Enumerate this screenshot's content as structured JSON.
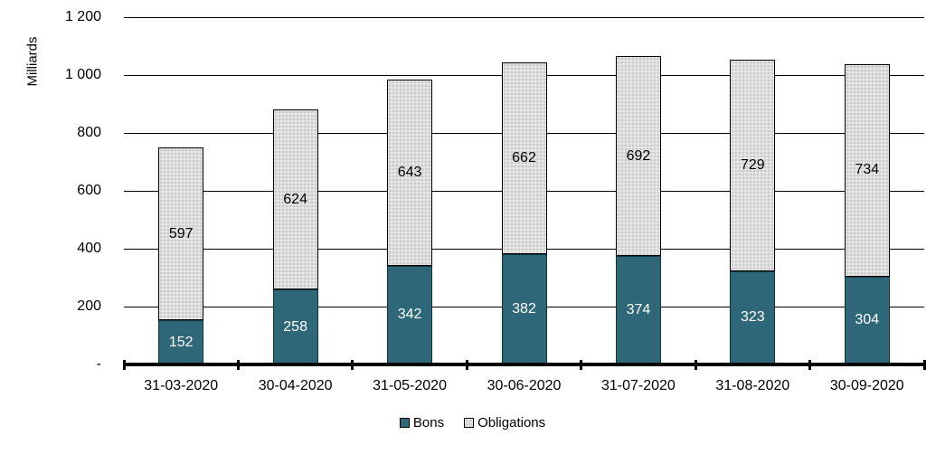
{
  "chart_data": {
    "type": "bar",
    "stacked": true,
    "title": "",
    "ylabel": "Milliards",
    "xlabel": "",
    "categories": [
      "31-03-2020",
      "30-04-2020",
      "31-05-2020",
      "30-06-2020",
      "31-07-2020",
      "31-08-2020",
      "30-09-2020"
    ],
    "series": [
      {
        "name": "Bons",
        "values": [
          152,
          258,
          342,
          382,
          374,
          323,
          304
        ],
        "color": "#2E6878",
        "label_color": "#ffffff",
        "pattern": "solid"
      },
      {
        "name": "Obligations",
        "values": [
          597,
          624,
          643,
          662,
          692,
          729,
          734
        ],
        "color": "#dbdbdb",
        "label_color": "#000000",
        "pattern": "dotted"
      }
    ],
    "totals": [
      749,
      882,
      985,
      1044,
      1066,
      1052,
      1038
    ],
    "ylim": [
      0,
      1200
    ],
    "ytick_values": [
      0,
      200,
      400,
      600,
      800,
      1000,
      1200
    ],
    "ytick_labels": [
      "-",
      "200",
      "400",
      "600",
      "800",
      "1 000",
      "1 200"
    ],
    "grid": true,
    "legend_position": "bottom",
    "data_labels": "centered-in-segment"
  },
  "colors": {
    "axis": "#000000",
    "gridline": "#000000",
    "background": "#ffffff"
  }
}
